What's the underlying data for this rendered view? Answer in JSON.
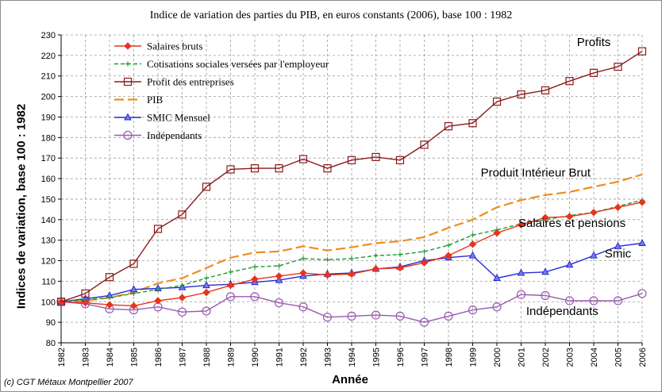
{
  "chart_data": {
    "type": "line",
    "title": "Indice de variation des parties du PIB,  en euros constants (2006), base 100 : 1982",
    "xlabel": "Année",
    "ylabel": "Indices de variation, base 100 : 1982",
    "ylim": [
      80,
      230
    ],
    "yticks": [
      80,
      90,
      100,
      110,
      120,
      130,
      140,
      150,
      160,
      170,
      180,
      190,
      200,
      210,
      220,
      230
    ],
    "grid": true,
    "legend_position": "top-left",
    "x": [
      1982,
      1983,
      1984,
      1985,
      1986,
      1987,
      1988,
      1989,
      1990,
      1991,
      1992,
      1993,
      1994,
      1995,
      1996,
      1997,
      1998,
      1999,
      2000,
      2001,
      2002,
      2003,
      2004,
      2005,
      2006
    ],
    "series": [
      {
        "name": "Salaires bruts",
        "color": "#e8341c",
        "marker": "diamond",
        "dash": "solid",
        "values": [
          100,
          99.5,
          98.5,
          98,
          100.5,
          102,
          104.5,
          108,
          111,
          112.5,
          114,
          113,
          113.5,
          116,
          116.5,
          119,
          122.5,
          128,
          133.5,
          137.5,
          141,
          141.5,
          143.5,
          146,
          148.5
        ]
      },
      {
        "name": "Cotisations sociales  versées par l'employeur",
        "color": "#1a9c2e",
        "marker": "plus",
        "dash": "dashed",
        "values": [
          100,
          101,
          102,
          104,
          106,
          108,
          111.5,
          114.5,
          117,
          117.5,
          121,
          120.5,
          121,
          122.5,
          123,
          124.5,
          127.5,
          132.5,
          135,
          138,
          140,
          142,
          143.5,
          146.5,
          149.5
        ]
      },
      {
        "name": "Profit des entreprises",
        "color": "#8b1a1a",
        "marker": "square",
        "dash": "solid",
        "values": [
          100,
          104,
          112,
          118.5,
          135.5,
          142.5,
          156,
          164.5,
          165,
          165,
          169.5,
          165,
          169,
          170.5,
          169,
          176.5,
          185.5,
          187,
          197.5,
          201,
          203,
          207.5,
          211.5,
          214.5,
          222
        ]
      },
      {
        "name": "PIB",
        "color": "#f08c1e",
        "marker": "none",
        "dash": "longdash",
        "values": [
          100,
          100.5,
          102,
          104.5,
          109,
          111.5,
          116.5,
          121.5,
          124,
          124.5,
          127,
          125,
          126.5,
          128.5,
          129.5,
          131.5,
          136,
          140,
          146,
          149.5,
          152,
          153.5,
          156,
          158.5,
          162
        ]
      },
      {
        "name": "SMIC Mensuel",
        "color": "#2a2ad0",
        "marker": "triangle",
        "dash": "solid",
        "values": [
          100,
          101.5,
          103,
          106,
          106.5,
          107,
          108,
          108.5,
          109.5,
          110.5,
          112.5,
          113.5,
          114,
          116,
          117,
          120,
          121.5,
          122.5,
          111.5,
          114,
          114.5,
          118,
          122.5,
          127,
          128.5
        ]
      },
      {
        "name": "Indépendants",
        "color": "#9a5ab0",
        "marker": "circle",
        "dash": "solid",
        "values": [
          100,
          99,
          96.5,
          96,
          97.5,
          95,
          95.5,
          102.5,
          102.5,
          99.5,
          97.5,
          92.5,
          93,
          93.5,
          93,
          90,
          93,
          96,
          97.5,
          103.5,
          103,
          100.5,
          100.5,
          100.5,
          104
        ]
      }
    ],
    "annotations": [
      {
        "text": "Profits",
        "x": 2004,
        "y": 224.5
      },
      {
        "text": "Produit Intérieur Brut",
        "x": 2001.6,
        "y": 161
      },
      {
        "text": "Salaires et pensions",
        "x": 2003.1,
        "y": 136.5
      },
      {
        "text": "Smic",
        "x": 2005,
        "y": 121.5
      },
      {
        "text": "Indépendants",
        "x": 2002.7,
        "y": 93.5
      }
    ]
  },
  "footer": {
    "copyright": "(c) CGT Métaux Montpellier 2007"
  }
}
